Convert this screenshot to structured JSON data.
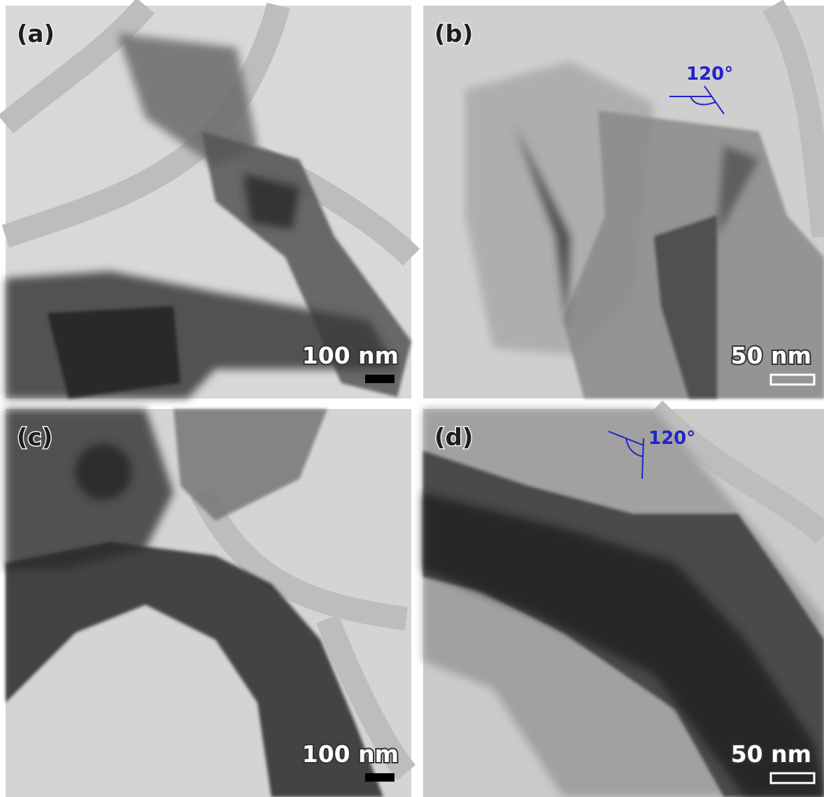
{
  "panels": [
    {
      "label": "(a)",
      "scale_bar": "100 nm"
    },
    {
      "label": "(b)",
      "scale_bar": "50 nm",
      "angle": "120°"
    },
    {
      "label": "(c)",
      "scale_bar": "100 nm"
    },
    {
      "label": "(d)",
      "scale_bar": "50 nm",
      "angle": "120°"
    }
  ]
}
